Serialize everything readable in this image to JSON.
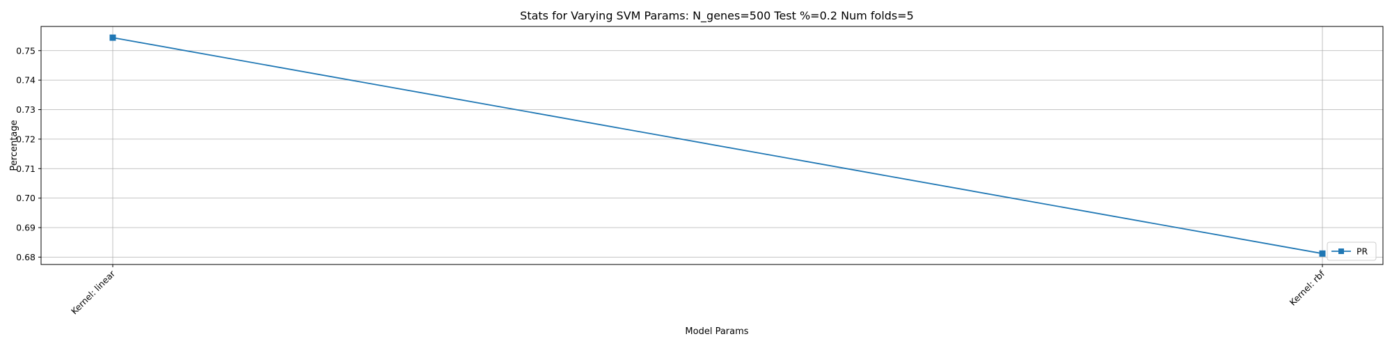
{
  "chart_data": {
    "type": "line",
    "title": "Stats for Varying SVM Params: N_genes=500 Test %=0.2 Num folds=5",
    "xlabel": "Model Params",
    "ylabel": "Percentage",
    "categories": [
      "Kernel: linear",
      "Kernel: rbf"
    ],
    "series": [
      {
        "name": "PR",
        "values": [
          0.7544,
          0.6812
        ],
        "color": "#1f77b4",
        "marker": "square"
      }
    ],
    "ylim": [
      0.6775,
      0.7582
    ],
    "yticks": [
      "0.68",
      "0.69",
      "0.70",
      "0.71",
      "0.72",
      "0.73",
      "0.74",
      "0.75"
    ],
    "grid": true,
    "legend_position": "lower-right"
  }
}
